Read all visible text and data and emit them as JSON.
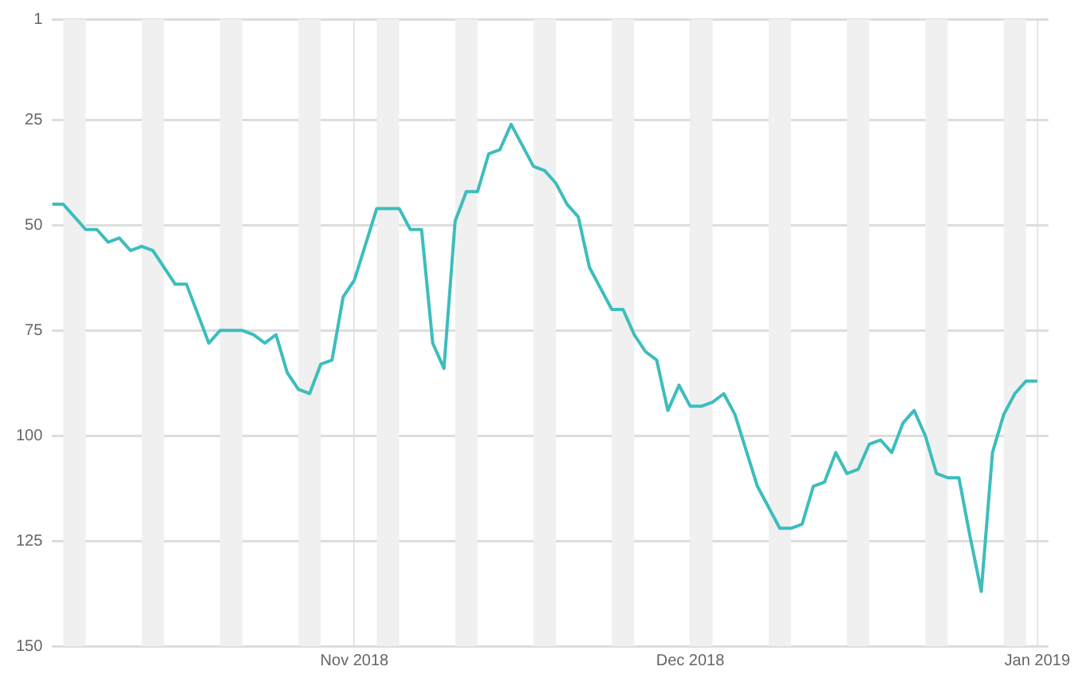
{
  "chart_data": {
    "type": "line",
    "x": [
      "2018-10-05",
      "2018-10-06",
      "2018-10-08",
      "2018-10-09",
      "2018-10-10",
      "2018-10-11",
      "2018-10-12",
      "2018-10-13",
      "2018-10-14",
      "2018-10-16",
      "2018-10-17",
      "2018-10-19",
      "2018-10-20",
      "2018-10-22",
      "2018-10-23",
      "2018-10-24",
      "2018-10-25",
      "2018-10-26",
      "2018-10-27",
      "2018-10-28",
      "2018-10-29",
      "2018-10-30",
      "2018-10-31",
      "2018-11-01",
      "2018-11-03",
      "2018-11-05",
      "2018-11-06",
      "2018-11-07",
      "2018-11-08",
      "2018-11-09",
      "2018-11-10",
      "2018-11-11",
      "2018-11-12",
      "2018-11-13",
      "2018-11-14",
      "2018-11-15",
      "2018-11-17",
      "2018-11-18",
      "2018-11-19",
      "2018-11-20",
      "2018-11-21",
      "2018-11-22",
      "2018-11-24",
      "2018-11-25",
      "2018-11-26",
      "2018-11-27",
      "2018-11-28",
      "2018-11-29",
      "2018-11-30",
      "2018-12-01",
      "2018-12-02",
      "2018-12-03",
      "2018-12-04",
      "2018-12-05",
      "2018-12-07",
      "2018-12-09",
      "2018-12-10",
      "2018-12-11",
      "2018-12-12",
      "2018-12-13",
      "2018-12-14",
      "2018-12-15",
      "2018-12-16",
      "2018-12-17",
      "2018-12-18",
      "2018-12-19",
      "2018-12-20",
      "2018-12-21",
      "2018-12-22",
      "2018-12-23",
      "2018-12-24",
      "2018-12-25",
      "2018-12-26",
      "2018-12-27",
      "2018-12-28",
      "2018-12-29",
      "2018-12-30",
      "2018-12-31",
      "2019-01-01"
    ],
    "series": [
      {
        "color": "#3dbdbd",
        "values": [
          45,
          45,
          51,
          51,
          54,
          53,
          56,
          55,
          56,
          64,
          64,
          78,
          75,
          75,
          76,
          78,
          76,
          85,
          89,
          90,
          83,
          82,
          67,
          63,
          46,
          46,
          51,
          51,
          78,
          84,
          49,
          42,
          42,
          33,
          32,
          26,
          36,
          37,
          40,
          45,
          48,
          60,
          70,
          70,
          76,
          80,
          82,
          94,
          88,
          93,
          93,
          92,
          90,
          95,
          112,
          122,
          122,
          121,
          112,
          111,
          104,
          109,
          108,
          102,
          101,
          104,
          97,
          94,
          100,
          109,
          110,
          110,
          124,
          137,
          104,
          95,
          90,
          87,
          87
        ]
      }
    ],
    "xlim": [
      "2018-10-05",
      "2019-01-02"
    ],
    "xticks": [
      {
        "value": "2018-11-01",
        "label": "Nov 2018"
      },
      {
        "value": "2018-12-01",
        "label": "Dec 2018"
      },
      {
        "value": "2019-01-01",
        "label": "Jan 2019"
      }
    ],
    "ylim": [
      150,
      1
    ],
    "yticks": [
      1,
      25,
      50,
      75,
      100,
      125,
      150
    ],
    "grid": true,
    "marker": "none",
    "line_style": "solid",
    "bands": [
      {
        "axis": "x",
        "from": "2018-10-06",
        "to": "2018-10-08",
        "color": "#f0f0f0"
      },
      {
        "axis": "x",
        "from": "2018-10-13",
        "to": "2018-10-15",
        "color": "#f0f0f0"
      },
      {
        "axis": "x",
        "from": "2018-10-20",
        "to": "2018-10-22",
        "color": "#f0f0f0"
      },
      {
        "axis": "x",
        "from": "2018-10-27",
        "to": "2018-10-29",
        "color": "#f0f0f0"
      },
      {
        "axis": "x",
        "from": "2018-11-03",
        "to": "2018-11-05",
        "color": "#f0f0f0"
      },
      {
        "axis": "x",
        "from": "2018-11-10",
        "to": "2018-11-12",
        "color": "#f0f0f0"
      },
      {
        "axis": "x",
        "from": "2018-11-17",
        "to": "2018-11-19",
        "color": "#f0f0f0"
      },
      {
        "axis": "x",
        "from": "2018-11-24",
        "to": "2018-11-26",
        "color": "#f0f0f0"
      },
      {
        "axis": "x",
        "from": "2018-12-01",
        "to": "2018-12-03",
        "color": "#f0f0f0"
      },
      {
        "axis": "x",
        "from": "2018-12-08",
        "to": "2018-12-10",
        "color": "#f0f0f0"
      },
      {
        "axis": "x",
        "from": "2018-12-15",
        "to": "2018-12-17",
        "color": "#f0f0f0"
      },
      {
        "axis": "x",
        "from": "2018-12-22",
        "to": "2018-12-24",
        "color": "#f0f0f0"
      },
      {
        "axis": "x",
        "from": "2018-12-29",
        "to": "2018-12-31",
        "color": "#f0f0f0"
      }
    ]
  }
}
